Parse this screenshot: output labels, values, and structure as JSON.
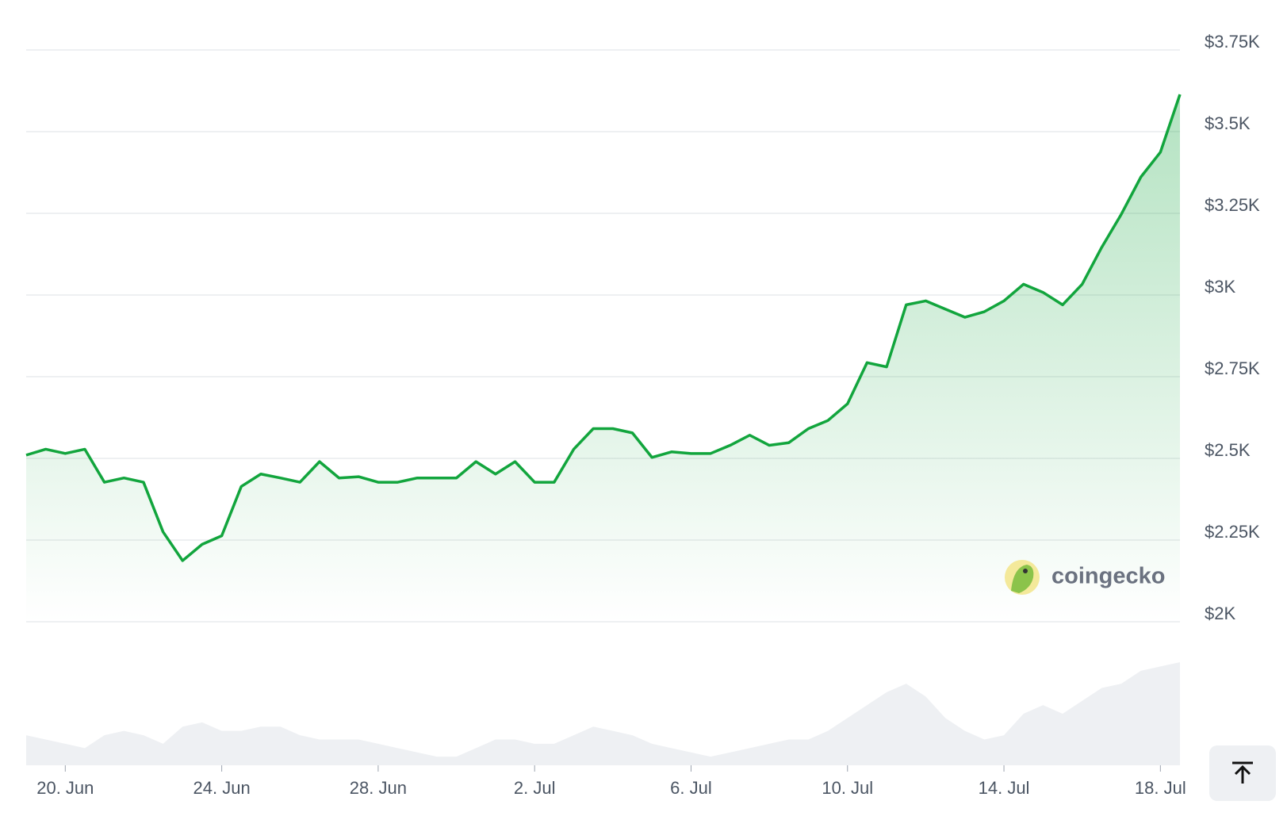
{
  "chart_data": {
    "type": "line",
    "categories": [
      null,
      null,
      "20. Jun",
      null,
      null,
      null,
      null,
      null,
      null,
      null,
      "24. Jun",
      null,
      null,
      null,
      null,
      null,
      null,
      null,
      "28. Jun",
      null,
      null,
      null,
      null,
      null,
      null,
      null,
      "2. Jul",
      null,
      null,
      null,
      null,
      null,
      null,
      null,
      "6. Jul",
      null,
      null,
      null,
      null,
      null,
      null,
      null,
      "10. Jul",
      null,
      null,
      null,
      null,
      null,
      null,
      null,
      "14. Jul",
      null,
      null,
      null,
      null,
      null,
      null,
      null,
      "18. Jul",
      null
    ],
    "values": [
      2510,
      2528,
      2515,
      2528,
      2427,
      2440,
      2427,
      2275,
      2187,
      2237,
      2263,
      2414,
      2452,
      2440,
      2427,
      2490,
      2440,
      2444,
      2427,
      2427,
      2440,
      2440,
      2440,
      2490,
      2452,
      2490,
      2427,
      2427,
      2528,
      2591,
      2591,
      2578,
      2503,
      2520,
      2515,
      2515,
      2540,
      2571,
      2540,
      2548,
      2591,
      2616,
      2667,
      2793,
      2780,
      2970,
      2982,
      2957,
      2932,
      2949,
      2982,
      3033,
      3008,
      2970,
      3033,
      3146,
      3247,
      3361,
      3437,
      3614
    ],
    "volume": [
      35,
      30,
      25,
      20,
      35,
      40,
      35,
      25,
      45,
      50,
      40,
      40,
      45,
      45,
      35,
      30,
      30,
      30,
      25,
      20,
      15,
      10,
      10,
      20,
      30,
      30,
      25,
      25,
      35,
      45,
      40,
      35,
      25,
      20,
      15,
      10,
      15,
      20,
      25,
      30,
      30,
      40,
      55,
      70,
      85,
      95,
      80,
      55,
      40,
      30,
      35,
      60,
      70,
      60,
      75,
      90,
      95,
      110,
      115,
      120
    ],
    "color": "#12a53d",
    "volume_color": "#eef0f3",
    "ylim": [
      2000,
      3750
    ],
    "yticks": [
      {
        "value": 2000,
        "label": "$2K"
      },
      {
        "value": 2250,
        "label": "$2.25K"
      },
      {
        "value": 2500,
        "label": "$2.5K"
      },
      {
        "value": 2750,
        "label": "$2.75K"
      },
      {
        "value": 3000,
        "label": "$3K"
      },
      {
        "value": 3250,
        "label": "$3.25K"
      },
      {
        "value": 3500,
        "label": "$3.5K"
      },
      {
        "value": 3750,
        "label": "$3.75K"
      }
    ],
    "grid": true,
    "watermark": "coingecko"
  }
}
